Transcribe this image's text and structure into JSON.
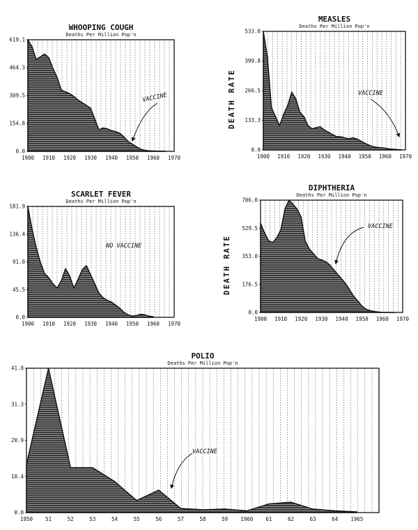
{
  "chart_data": [
    {
      "type": "area",
      "title": "WHOOPING COUGH",
      "subtitle": "Deaths Per Million Pop'n",
      "ylabel": "",
      "yticks": [
        "0.0",
        "154.8",
        "309.5",
        "464.3",
        "619.1"
      ],
      "xticks": [
        "1900",
        "1910",
        "1920",
        "1930",
        "1940",
        "1950",
        "1960",
        "1970"
      ],
      "xlim": [
        1900,
        1970
      ],
      "ylim": [
        0,
        619.1
      ],
      "grid": true,
      "x": [
        1900,
        1902,
        1904,
        1906,
        1908,
        1910,
        1912,
        1914,
        1916,
        1918,
        1920,
        1922,
        1924,
        1926,
        1928,
        1930,
        1932,
        1934,
        1936,
        1938,
        1940,
        1942,
        1944,
        1946,
        1948,
        1950,
        1952,
        1954,
        1956,
        1958,
        1960,
        1962,
        1964,
        1966
      ],
      "y": [
        619.1,
        580,
        510,
        525,
        540,
        520,
        460,
        410,
        340,
        330,
        320,
        305,
        285,
        270,
        255,
        240,
        180,
        120,
        130,
        125,
        115,
        110,
        100,
        80,
        55,
        40,
        25,
        12,
        6,
        3,
        2,
        1,
        1,
        0.5
      ],
      "annotation": "VACCINE"
    },
    {
      "type": "area",
      "title": "MEASLES",
      "subtitle": "Deaths Per Million Pop'n",
      "ylabel": "DEATH RATE",
      "yticks": [
        "0.0",
        "133.3",
        "266.5",
        "399.8",
        "533.0"
      ],
      "xticks": [
        "1900",
        "1910",
        "1920",
        "1930",
        "1940",
        "1950",
        "1960",
        "1970"
      ],
      "xlim": [
        1900,
        1970
      ],
      "ylim": [
        0,
        533
      ],
      "grid": true,
      "x": [
        1900,
        1902,
        1904,
        1906,
        1908,
        1910,
        1912,
        1914,
        1916,
        1918,
        1920,
        1922,
        1924,
        1926,
        1928,
        1930,
        1932,
        1934,
        1936,
        1938,
        1940,
        1942,
        1944,
        1946,
        1948,
        1950,
        1952,
        1954,
        1956,
        1958,
        1960,
        1962,
        1964,
        1966,
        1968
      ],
      "y": [
        533,
        420,
        190,
        150,
        110,
        160,
        200,
        260,
        230,
        170,
        150,
        110,
        95,
        100,
        105,
        90,
        80,
        70,
        60,
        60,
        55,
        50,
        55,
        50,
        40,
        30,
        22,
        15,
        12,
        10,
        8,
        5,
        3,
        2,
        1
      ],
      "annotation": "VACCINE"
    },
    {
      "type": "area",
      "title": "SCARLET FEVER",
      "subtitle": "Deaths Per Million Pop'n",
      "ylabel": "",
      "yticks": [
        "0.0",
        "45.5",
        "91.0",
        "136.4",
        "181.9"
      ],
      "xticks": [
        "1900",
        "1910",
        "1920",
        "1930",
        "1940",
        "1950",
        "1960",
        "1970"
      ],
      "xlim": [
        1900,
        1970
      ],
      "ylim": [
        0,
        181.9
      ],
      "grid": true,
      "x": [
        1900,
        1902,
        1904,
        1906,
        1908,
        1910,
        1912,
        1914,
        1916,
        1918,
        1920,
        1922,
        1924,
        1926,
        1928,
        1930,
        1932,
        1934,
        1936,
        1938,
        1940,
        1942,
        1944,
        1946,
        1948,
        1950,
        1952,
        1954,
        1956,
        1958,
        1960
      ],
      "y": [
        181.9,
        145,
        115,
        90,
        72,
        65,
        55,
        48,
        60,
        80,
        68,
        48,
        62,
        78,
        85,
        70,
        55,
        40,
        32,
        28,
        25,
        20,
        15,
        8,
        4,
        2,
        3,
        5,
        4,
        2,
        1
      ],
      "annotation": "NO VACCINE"
    },
    {
      "type": "area",
      "title": "DIPHTHERIA",
      "subtitle": "Deaths Per Million Pop'n",
      "ylabel": "DEATH RATE",
      "yticks": [
        "0.0",
        "176.5",
        "353.0",
        "529.5",
        "706.0"
      ],
      "xticks": [
        "1900",
        "1910",
        "1920",
        "1930",
        "1940",
        "1950",
        "1960",
        "1970"
      ],
      "xlim": [
        1900,
        1970
      ],
      "ylim": [
        0,
        706
      ],
      "grid": true,
      "x": [
        1900,
        1902,
        1904,
        1906,
        1908,
        1910,
        1912,
        1914,
        1916,
        1918,
        1920,
        1922,
        1924,
        1926,
        1928,
        1930,
        1932,
        1934,
        1936,
        1938,
        1940,
        1942,
        1944,
        1946,
        1948,
        1950,
        1952,
        1954,
        1956,
        1958,
        1960,
        1962,
        1964,
        1966
      ],
      "y": [
        560,
        500,
        450,
        440,
        470,
        520,
        650,
        706,
        680,
        650,
        600,
        450,
        400,
        370,
        340,
        330,
        320,
        300,
        270,
        240,
        210,
        180,
        140,
        100,
        70,
        40,
        20,
        12,
        6,
        3,
        1,
        0.5,
        0.2,
        0.1
      ],
      "annotation": "VACCINE"
    },
    {
      "type": "area",
      "title": "POLIO",
      "subtitle": "Deaths Per Million Pop'n",
      "ylabel": "",
      "yticks": [
        "0.0",
        "10.4",
        "20.9",
        "31.3",
        "41.8"
      ],
      "xticks": [
        "1950",
        "51",
        "52",
        "53",
        "54",
        "55",
        "56",
        "57",
        "58",
        "59",
        "1960",
        "61",
        "62",
        "63",
        "64",
        "1965"
      ],
      "xlim": [
        1950,
        1966
      ],
      "ylim": [
        0,
        41.8
      ],
      "grid": true,
      "x": [
        1950,
        1951,
        1952,
        1953,
        1954,
        1955,
        1956,
        1957,
        1958,
        1959,
        1960,
        1961,
        1962,
        1963,
        1964,
        1965
      ],
      "y": [
        14.0,
        41.8,
        13.0,
        13.0,
        9.0,
        3.5,
        6.5,
        1.2,
        0.8,
        1.0,
        0.5,
        2.5,
        3.0,
        1.0,
        0.5,
        0.2
      ],
      "annotation": "VACCINE"
    }
  ]
}
